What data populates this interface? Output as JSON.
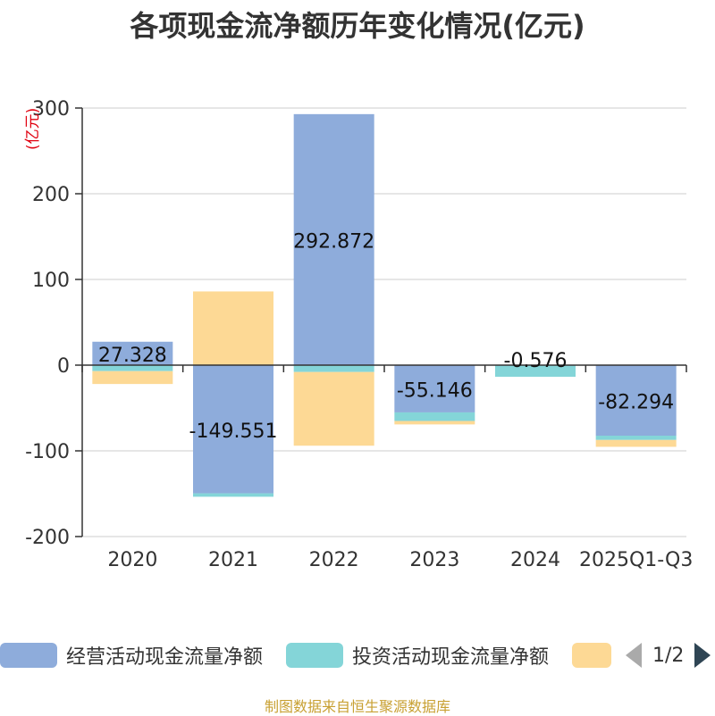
{
  "title": "各项现金流净额历年变化情况(亿元)",
  "source_note": "制图数据来自恒生聚源数据库",
  "legend": {
    "items": [
      {
        "label": "经营活动现金流量净额",
        "color": "#8eacdb"
      },
      {
        "label": "投资活动现金流量净额",
        "color": "#84d5d8"
      },
      {
        "label": "",
        "color": "#fdd995"
      }
    ],
    "page": "1/2"
  },
  "chart_data": {
    "type": "bar",
    "stacked": true,
    "categories": [
      "2020",
      "2021",
      "2022",
      "2023",
      "2024",
      "2025Q1-Q3"
    ],
    "ylabel": "(亿元)",
    "ylim": [
      -200,
      300
    ],
    "yticks": [
      -200,
      -100,
      0,
      100,
      200,
      300
    ],
    "grid": true,
    "legend_position": "bottom",
    "series": [
      {
        "name": "经营活动现金流量净额",
        "color": "#8eacdb",
        "values": [
          27.328,
          -149.551,
          292.872,
          -55.146,
          -0.576,
          -82.294
        ],
        "labels": [
          "27.328",
          "-149.551",
          "292.872",
          "-55.146",
          "-0.576",
          "-82.294"
        ]
      },
      {
        "name": "投资活动现金流量净额",
        "color": "#84d5d8",
        "values": [
          -7,
          -4,
          -8,
          -10,
          -13,
          -5
        ]
      },
      {
        "color": "#fdd995",
        "values": [
          -15,
          86,
          -86,
          -4,
          0,
          -8
        ]
      }
    ]
  }
}
